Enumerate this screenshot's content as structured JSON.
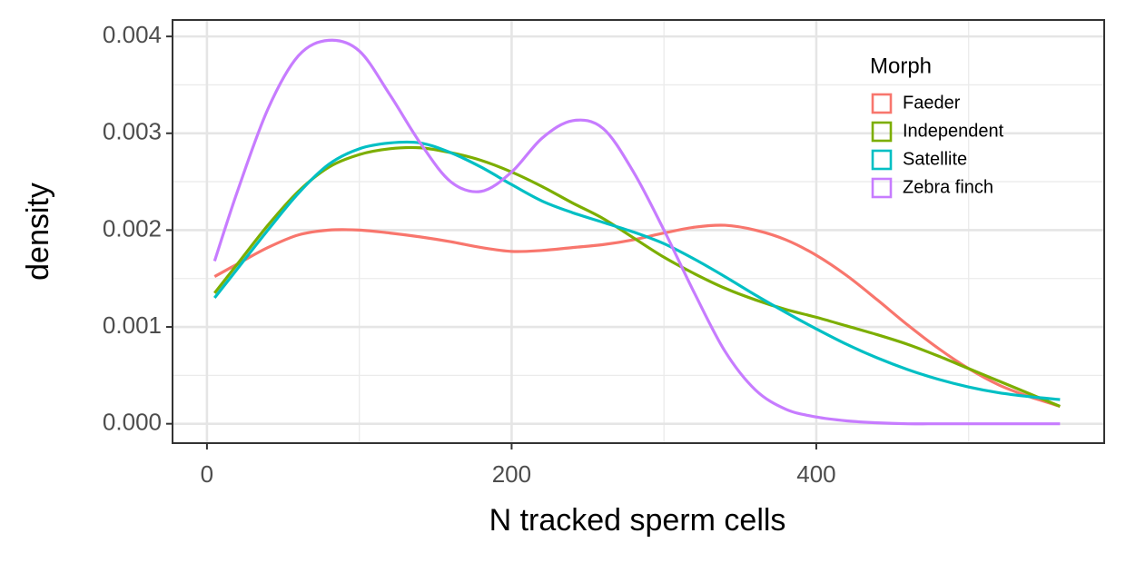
{
  "chart_data": {
    "type": "line",
    "x_label": "N tracked sperm cells",
    "y_label": "density",
    "legend_title": "Morph",
    "legend_position": "top-right",
    "grid": true,
    "xlim": [
      -22.6,
      589
    ],
    "ylim": [
      -0.0002,
      0.00417
    ],
    "xticks": [
      0,
      200,
      400
    ],
    "yticks": [
      {
        "value": 0,
        "label": "0.000"
      },
      0.001,
      0.002,
      0.003,
      0.004
    ],
    "xminor": [
      100,
      300,
      500
    ],
    "yminor": [
      0.0005,
      0.0015,
      0.0025,
      0.0035
    ],
    "x": [
      5,
      20,
      40,
      60,
      80,
      100,
      120,
      140,
      160,
      180,
      200,
      220,
      240,
      260,
      280,
      300,
      320,
      340,
      360,
      380,
      400,
      420,
      440,
      460,
      480,
      500,
      520,
      540,
      560
    ],
    "series": [
      {
        "name": "Faeder",
        "color": "#F8766D",
        "values": [
          0.00152,
          0.00165,
          0.00182,
          0.00195,
          0.002,
          0.002,
          0.00197,
          0.00193,
          0.00188,
          0.00182,
          0.00178,
          0.00179,
          0.00182,
          0.00185,
          0.0019,
          0.00197,
          0.00203,
          0.00205,
          0.002,
          0.0019,
          0.00174,
          0.00153,
          0.00128,
          0.00102,
          0.00078,
          0.00057,
          0.0004,
          0.00028,
          0.00018
        ]
      },
      {
        "name": "Independent",
        "color": "#7CAE00",
        "values": [
          0.00135,
          0.00165,
          0.00205,
          0.0024,
          0.00265,
          0.00278,
          0.00284,
          0.00285,
          0.0028,
          0.00272,
          0.0026,
          0.00245,
          0.00228,
          0.00212,
          0.00192,
          0.00172,
          0.00155,
          0.0014,
          0.00128,
          0.00118,
          0.0011,
          0.00101,
          0.00092,
          0.00082,
          0.0007,
          0.00057,
          0.00044,
          0.00031,
          0.00018
        ]
      },
      {
        "name": "Satellite",
        "color": "#00BFC4",
        "values": [
          0.0013,
          0.0016,
          0.002,
          0.00238,
          0.00268,
          0.00284,
          0.0029,
          0.0029,
          0.0028,
          0.00265,
          0.00247,
          0.0023,
          0.00218,
          0.00208,
          0.00198,
          0.00186,
          0.0017,
          0.00152,
          0.00133,
          0.00115,
          0.00098,
          0.00082,
          0.00068,
          0.00056,
          0.00046,
          0.00038,
          0.00032,
          0.00028,
          0.00025
        ]
      },
      {
        "name": "Zebra finch",
        "color": "#C77CFF",
        "values": [
          0.00168,
          0.0024,
          0.00325,
          0.0038,
          0.00396,
          0.00385,
          0.0034,
          0.0029,
          0.0025,
          0.0024,
          0.0026,
          0.00295,
          0.00313,
          0.00305,
          0.0026,
          0.002,
          0.00135,
          0.00075,
          0.00035,
          0.00015,
          7e-05,
          3e-05,
          1e-05,
          0,
          0,
          0,
          0,
          0,
          0
        ]
      }
    ]
  }
}
